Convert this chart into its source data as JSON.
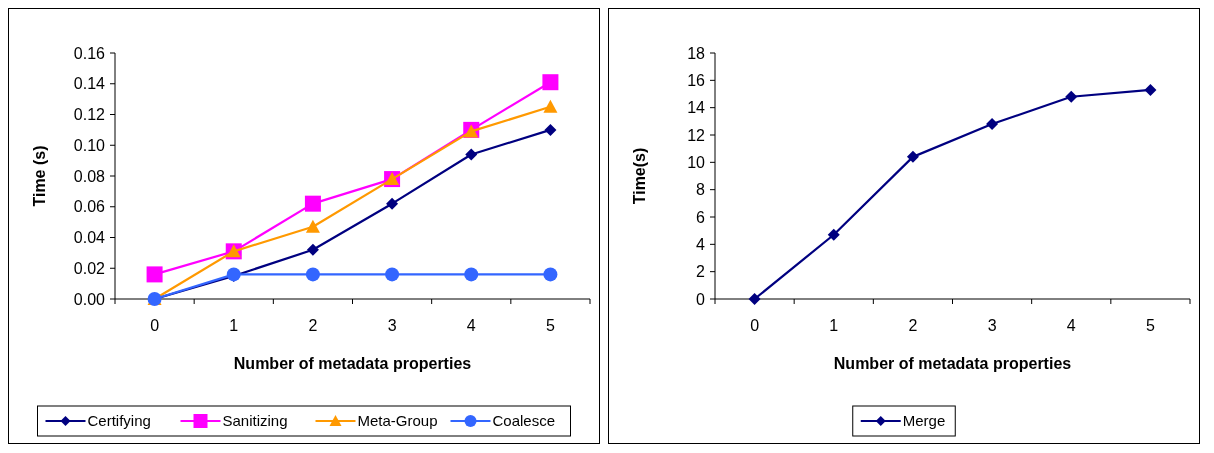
{
  "chart_data": [
    {
      "type": "line",
      "xlabel": "Number of metadata properties",
      "ylabel": "Time (s)",
      "categories": [
        "0",
        "1",
        "2",
        "3",
        "4",
        "5"
      ],
      "ylim": [
        0,
        0.16
      ],
      "yticks": [
        {
          "value": 0,
          "label": "0.00"
        },
        {
          "value": 0.02,
          "label": "0.02"
        },
        {
          "value": 0.04,
          "label": "0.04"
        },
        {
          "value": 0.06,
          "label": "0.06"
        },
        {
          "value": 0.08,
          "label": "0.08"
        },
        {
          "value": 0.1,
          "label": "0.10"
        },
        {
          "value": 0.12,
          "label": "0.12"
        },
        {
          "value": 0.14,
          "label": "0.14"
        },
        {
          "value": 0.16,
          "label": "0.16"
        }
      ],
      "legend": "bottom",
      "grid": false,
      "series": [
        {
          "name": "Certifying",
          "color": "#000080",
          "marker": "diamond",
          "values": [
            0,
            0.015,
            0.032,
            0.062,
            0.094,
            0.11
          ]
        },
        {
          "name": "Sanitizing",
          "color": "#ff00ff",
          "marker": "square",
          "values": [
            0.016,
            0.031,
            0.062,
            0.078,
            0.11,
            0.141
          ]
        },
        {
          "name": "Meta-Group",
          "color": "#ff9900",
          "marker": "triangle",
          "values": [
            0,
            0.031,
            0.047,
            0.078,
            0.109,
            0.125
          ]
        },
        {
          "name": "Coalesce",
          "color": "#3366ff",
          "marker": "circle",
          "values": [
            0,
            0.016,
            0.016,
            0.016,
            0.016,
            0.016
          ]
        }
      ]
    },
    {
      "type": "line",
      "xlabel": "Number of metadata properties",
      "ylabel": "Time(s)",
      "categories": [
        "0",
        "1",
        "2",
        "3",
        "4",
        "5"
      ],
      "ylim": [
        0,
        18
      ],
      "yticks": [
        0,
        2,
        4,
        6,
        8,
        10,
        12,
        14,
        16,
        18
      ],
      "legend": "bottom",
      "grid": false,
      "series": [
        {
          "name": "Merge",
          "color": "#000080",
          "marker": "diamond",
          "values": [
            0,
            4.7,
            10.4,
            12.8,
            14.8,
            15.3
          ]
        }
      ]
    }
  ]
}
